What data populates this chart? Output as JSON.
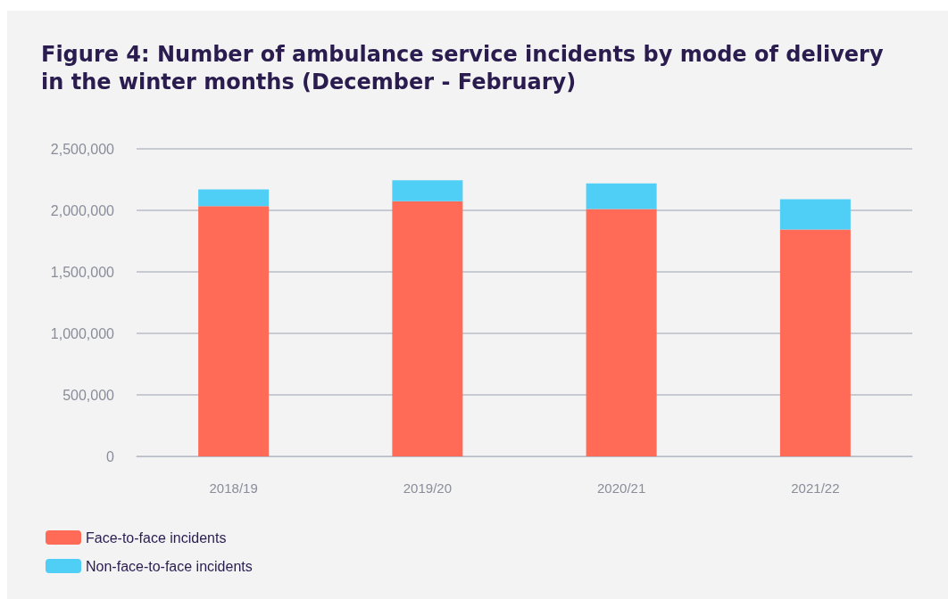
{
  "chart_data": {
    "type": "bar",
    "title": "Figure 4: Number of ambulance service incidents by mode of delivery in the winter months (December - February)",
    "categories": [
      "2018/19",
      "2019/20",
      "2020/21",
      "2021/22"
    ],
    "series": [
      {
        "name": "Face-to-face incidents",
        "color": "#ff6b57",
        "values": [
          2035000,
          2075000,
          2010000,
          1845000
        ]
      },
      {
        "name": "Non-face-to-face incidents",
        "color": "#4fcff5",
        "values": [
          135000,
          170000,
          210000,
          245000
        ]
      }
    ],
    "stacked": true,
    "ylim": [
      0,
      2500000
    ],
    "yticks": [
      {
        "value": 0,
        "label": "0"
      },
      {
        "value": 500000,
        "label": "500,000"
      },
      {
        "value": 1000000,
        "label": "1,000,000"
      },
      {
        "value": 1500000,
        "label": "1,500,000"
      },
      {
        "value": 2000000,
        "label": "2,000,000"
      },
      {
        "value": 2500000,
        "label": "2,500,000"
      }
    ],
    "grid": "y",
    "legend": "bottom left"
  }
}
